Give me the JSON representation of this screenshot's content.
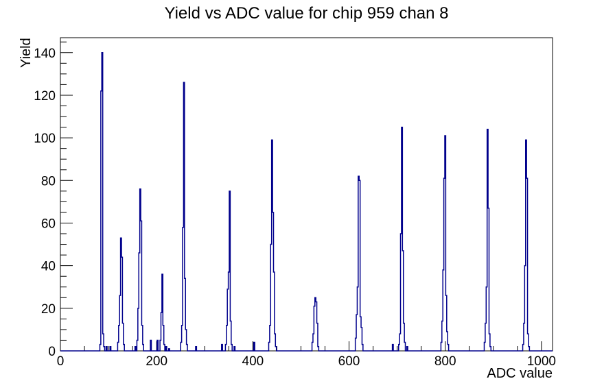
{
  "chart_data": {
    "type": "bar",
    "title": "Yield vs ADC value for chip 959 chan 8",
    "xlabel": "ADC value",
    "ylabel": "Yield",
    "xlim": [
      0,
      1023
    ],
    "ylim": [
      0,
      147
    ],
    "x_ticks_major": [
      0,
      200,
      400,
      600,
      800,
      1000
    ],
    "x_tick_minor_step": 50,
    "y_ticks_major": [
      0,
      20,
      40,
      60,
      80,
      100,
      120,
      140
    ],
    "y_tick_minor_step": 5,
    "grid": false,
    "legend": "none",
    "line_color": "#00008c",
    "frame_color": "#000000",
    "background_color": "#ffffff",
    "bin_width": 2,
    "clusters": [
      {
        "start": 82,
        "values": [
          3,
          122,
          140,
          8,
          2
        ]
      },
      {
        "start": 95,
        "values": [
          2
        ]
      },
      {
        "start": 103,
        "values": [
          2
        ]
      },
      {
        "start": 119,
        "values": [
          4,
          12,
          26,
          53,
          44,
          13,
          3
        ]
      },
      {
        "start": 155,
        "values": [
          2
        ]
      },
      {
        "start": 159,
        "values": [
          5,
          20,
          46,
          76,
          61,
          12,
          3
        ]
      },
      {
        "start": 187,
        "values": [
          5
        ]
      },
      {
        "start": 201,
        "values": [
          5
        ]
      },
      {
        "start": 207,
        "values": [
          5,
          18,
          36,
          12,
          3
        ]
      },
      {
        "start": 219,
        "values": [
          2
        ]
      },
      {
        "start": 225,
        "values": [
          1
        ]
      },
      {
        "start": 250,
        "values": [
          4,
          12,
          58,
          126,
          34,
          10,
          3
        ]
      },
      {
        "start": 281,
        "values": [
          2
        ]
      },
      {
        "start": 335,
        "values": [
          3
        ]
      },
      {
        "start": 343,
        "values": [
          3,
          12,
          29,
          37,
          75,
          14,
          3
        ]
      },
      {
        "start": 361,
        "values": [
          2
        ]
      },
      {
        "start": 402,
        "values": [
          4
        ]
      },
      {
        "start": 433,
        "values": [
          4,
          12,
          50,
          99,
          65,
          37,
          8,
          2
        ]
      },
      {
        "start": 523,
        "values": [
          4,
          8,
          21,
          25,
          23,
          13,
          2
        ]
      },
      {
        "start": 613,
        "values": [
          6,
          17,
          30,
          82,
          80,
          16,
          11,
          3
        ]
      },
      {
        "start": 690,
        "values": [
          3
        ]
      },
      {
        "start": 703,
        "values": [
          3,
          8,
          55,
          105,
          47,
          13,
          4
        ]
      },
      {
        "start": 720,
        "values": [
          2
        ]
      },
      {
        "start": 791,
        "values": [
          4,
          14,
          38,
          81,
          101,
          26,
          9,
          3
        ]
      },
      {
        "start": 881,
        "values": [
          4,
          13,
          30,
          104,
          67,
          8,
          2
        ]
      },
      {
        "start": 961,
        "values": [
          3,
          13,
          40,
          99,
          81,
          8,
          2
        ]
      }
    ]
  }
}
